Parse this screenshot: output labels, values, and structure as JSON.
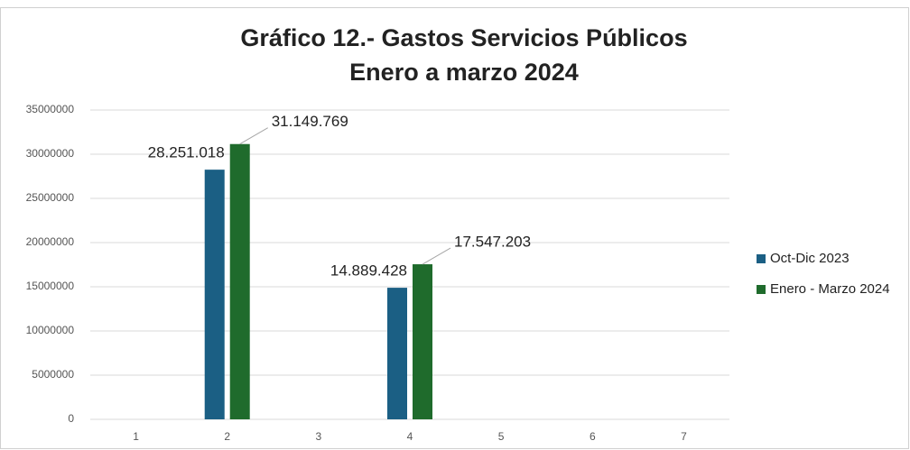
{
  "chart_data": {
    "type": "bar",
    "title": "Gráfico 12.- Gastos Servicios Públicos",
    "subtitle": "Enero a marzo 2024",
    "categories": [
      "1",
      "2",
      "3",
      "4",
      "5",
      "6",
      "7"
    ],
    "series": [
      {
        "name": "Oct-Dic 2023",
        "color": "#1b5f84",
        "values": [
          null,
          28251018,
          null,
          14889428,
          null,
          null,
          null
        ],
        "value_labels": [
          null,
          "28.251.018",
          null,
          "14.889.428",
          null,
          null,
          null
        ]
      },
      {
        "name": "Enero - Marzo 2024",
        "color": "#1f6b2c",
        "values": [
          null,
          31149769,
          null,
          17547203,
          null,
          null,
          null
        ],
        "value_labels": [
          null,
          "31.149.769",
          null,
          "17.547.203",
          null,
          null,
          null
        ]
      }
    ],
    "ylim": [
      0,
      35000000
    ],
    "yticks": [
      0,
      5000000,
      10000000,
      15000000,
      20000000,
      25000000,
      30000000,
      35000000
    ],
    "grid": true,
    "legend": "right"
  }
}
